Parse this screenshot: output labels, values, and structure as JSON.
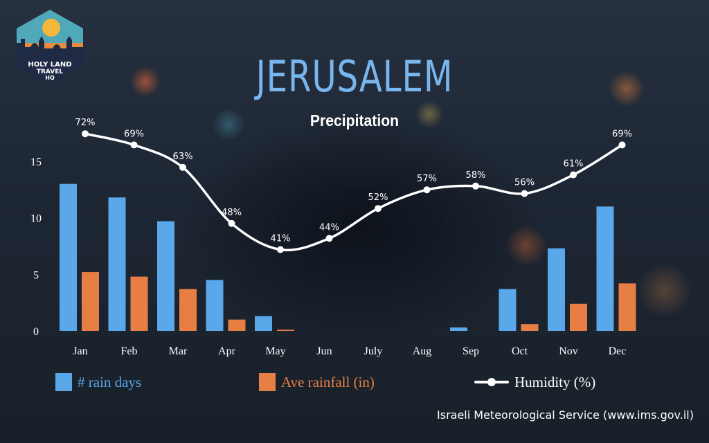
{
  "brand": {
    "logo_text_line1": "HOLY LAND",
    "logo_text_line2": "TRAVEL",
    "logo_text_line3": "HQ",
    "colors": {
      "navy": "#1f2a44",
      "orange": "#e98b3e",
      "teal": "#4fa9b8",
      "sun": "#f4b73c"
    }
  },
  "header": {
    "title": "JERUSALEM",
    "subtitle": "Precipitation"
  },
  "legend": {
    "rain_days": "# rain days",
    "rainfall": "Ave rainfall (in)",
    "humidity": "Humidity (%)"
  },
  "source": "Israeli Meteorological Service (www.ims.gov.il)",
  "chart_data": {
    "type": "bar",
    "categories": [
      "Jan",
      "Feb",
      "Mar",
      "Apr",
      "May",
      "Jun",
      "July",
      "Aug",
      "Sep",
      "Oct",
      "Nov",
      "Dec"
    ],
    "ylim": [
      0,
      15
    ],
    "yticks": [
      0,
      5,
      10,
      15
    ],
    "series": [
      {
        "name": "# rain days",
        "type": "bar",
        "color": "#5aa7ea",
        "values": [
          13,
          11.8,
          9.7,
          4.5,
          1.3,
          0,
          0,
          0,
          0.3,
          3.7,
          7.3,
          11
        ]
      },
      {
        "name": "Ave rainfall (in)",
        "type": "bar",
        "color": "#e77f45",
        "values": [
          5.2,
          4.8,
          3.7,
          1.0,
          0.1,
          0,
          0,
          0,
          0,
          0.6,
          2.4,
          4.2
        ]
      },
      {
        "name": "Humidity (%)",
        "type": "line",
        "color": "#ffffff",
        "values": [
          72,
          69,
          63,
          48,
          41,
          44,
          52,
          57,
          58,
          56,
          61,
          69
        ],
        "labels": [
          "72%",
          "69%",
          "63%",
          "48%",
          "41%",
          "44%",
          "52%",
          "57%",
          "58%",
          "56%",
          "61%",
          "69%"
        ]
      }
    ],
    "grid": false,
    "legend_position": "bottom"
  }
}
